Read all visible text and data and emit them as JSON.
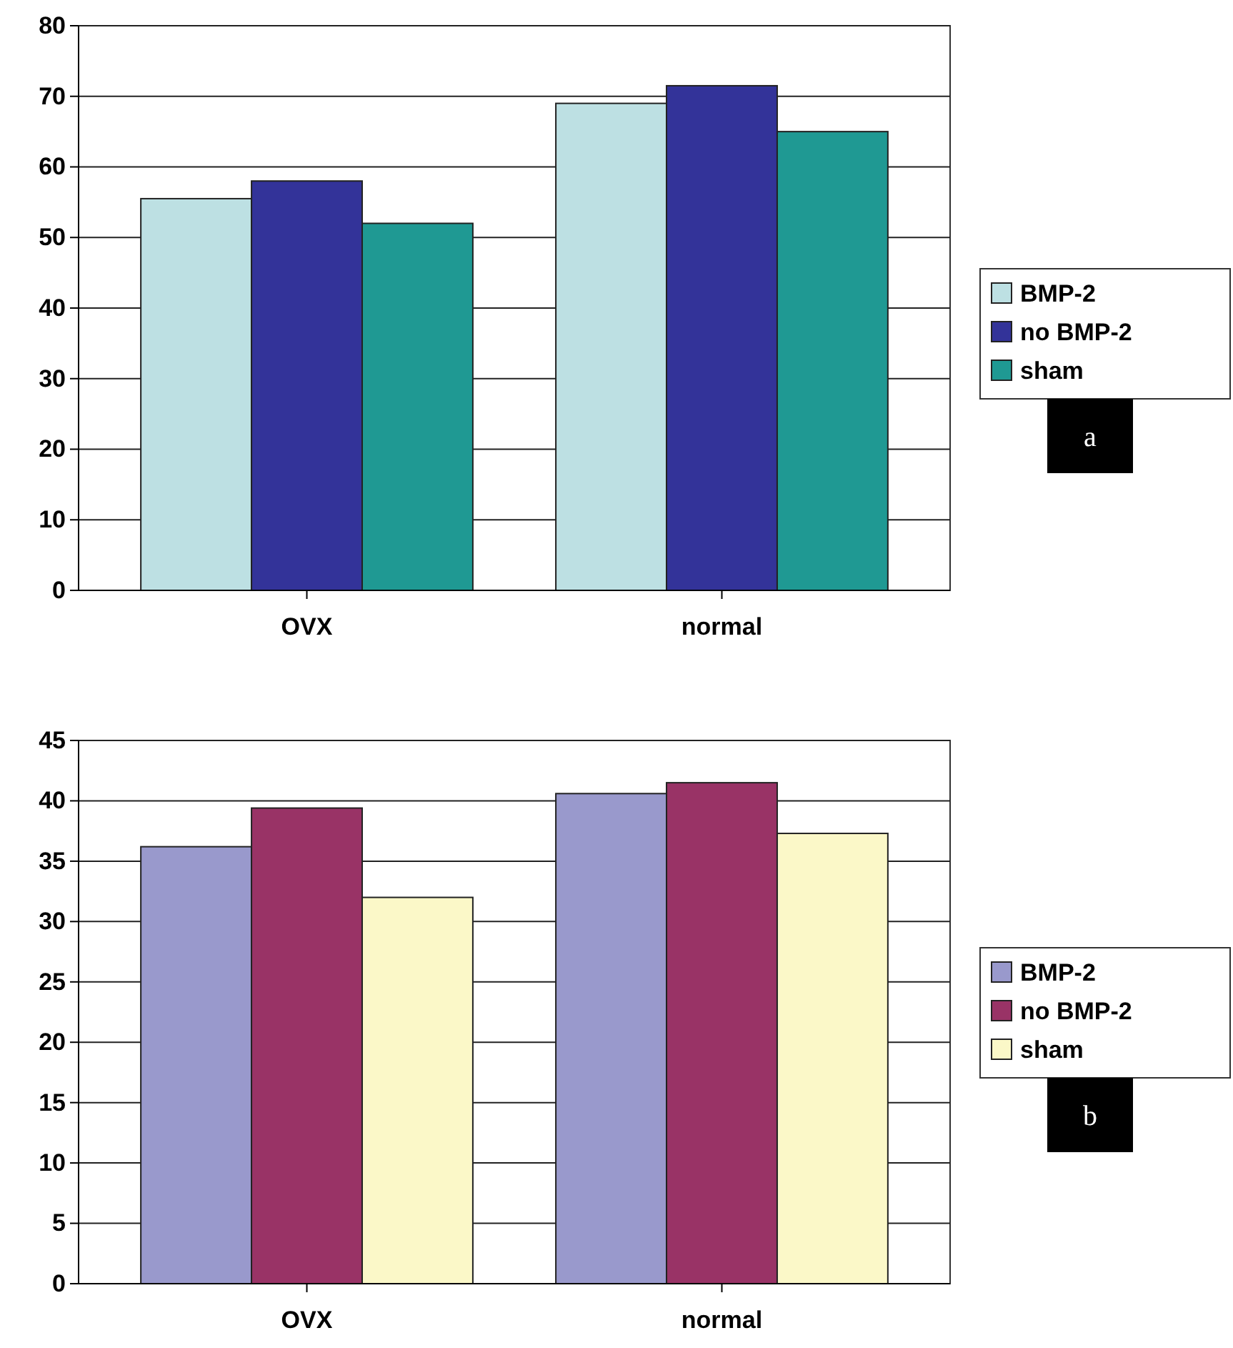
{
  "chart_data": [
    {
      "type": "bar",
      "categories": [
        "OVX",
        "normal"
      ],
      "ylim": [
        0,
        80
      ],
      "yticks": [
        0,
        10,
        20,
        30,
        40,
        50,
        60,
        70,
        80
      ],
      "grid": "y",
      "legend": "right",
      "annotations": [
        "a"
      ],
      "series": [
        {
          "name": "BMP-2",
          "color": "#bde0e3",
          "values": [
            55.5,
            69
          ]
        },
        {
          "name": "no BMP-2",
          "color": "#333399",
          "values": [
            58,
            71.5
          ]
        },
        {
          "name": "sham",
          "color": "#1f9993",
          "values": [
            52,
            65
          ]
        }
      ]
    },
    {
      "type": "bar",
      "categories": [
        "OVX",
        "normal"
      ],
      "ylim": [
        0,
        45
      ],
      "yticks": [
        0,
        5,
        10,
        15,
        20,
        25,
        30,
        35,
        40,
        45
      ],
      "grid": "y",
      "legend": "right",
      "annotations": [
        "b"
      ],
      "series": [
        {
          "name": "BMP-2",
          "color": "#9999cc",
          "values": [
            36.2,
            40.6
          ]
        },
        {
          "name": "no BMP-2",
          "color": "#993366",
          "values": [
            39.4,
            41.5
          ]
        },
        {
          "name": "sham",
          "color": "#fbf8c8",
          "values": [
            32,
            37.3
          ]
        }
      ]
    }
  ]
}
